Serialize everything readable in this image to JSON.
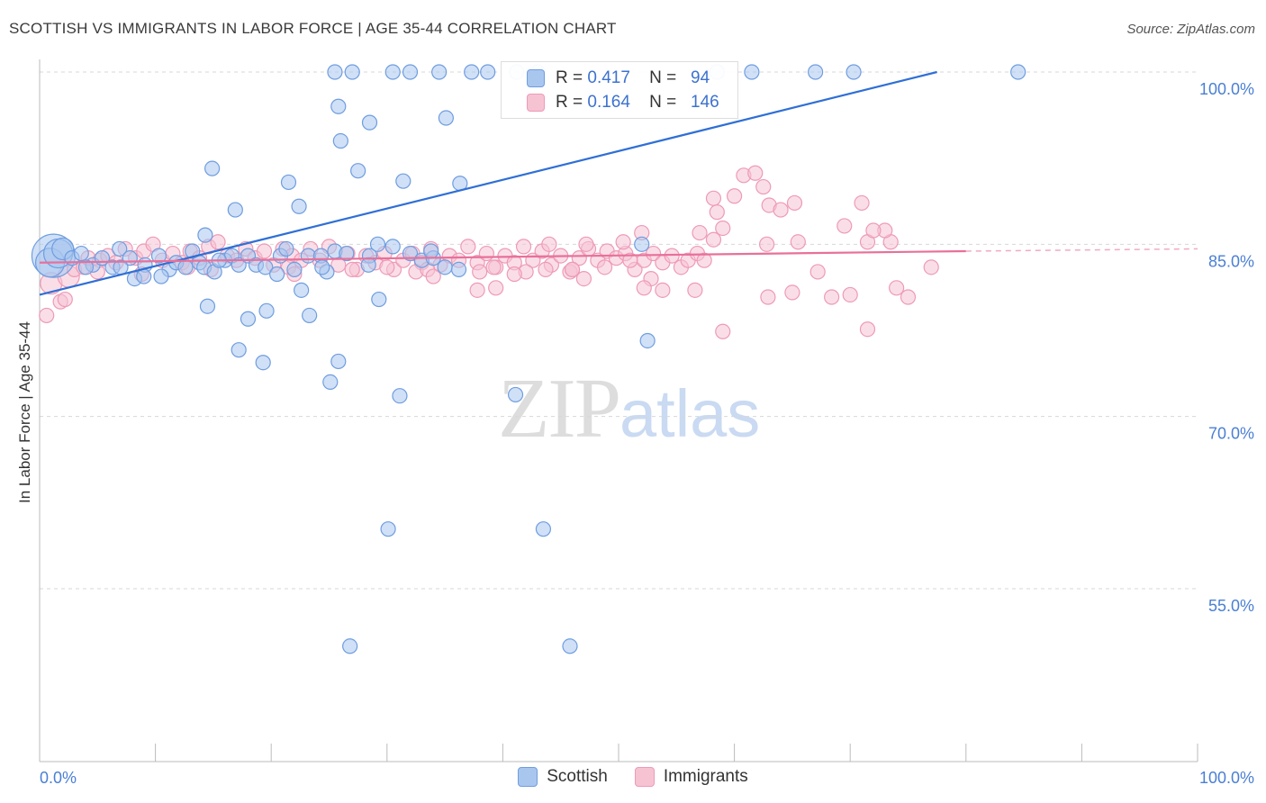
{
  "title": "SCOTTISH VS IMMIGRANTS IN LABOR FORCE | AGE 35-44 CORRELATION CHART",
  "source": "Source: ZipAtlas.com",
  "watermark": {
    "zip": "ZIP",
    "atlas": "atlas"
  },
  "legend_top": {
    "rows": [
      {
        "r_label": "R =",
        "r_value": "0.417",
        "n_label": "N =",
        "n_value": "94"
      },
      {
        "r_label": "R =",
        "r_value": "0.164",
        "n_label": "N =",
        "n_value": "146"
      }
    ]
  },
  "legend_bottom": [
    {
      "label": "Scottish"
    },
    {
      "label": "Immigrants"
    }
  ],
  "colors": {
    "blue_fill": "#a9c6ef",
    "blue_stroke": "#6f9de0",
    "blue_line": "#2f6fd6",
    "pink_fill": "#f6c3d3",
    "pink_stroke": "#ee9ab6",
    "pink_line": "#e8709a",
    "tick_text": "#4a7fd4",
    "grid": "#d7d7d7"
  },
  "chart_data": {
    "type": "scatter",
    "title": "SCOTTISH VS IMMIGRANTS IN LABOR FORCE | AGE 35-44 CORRELATION CHART",
    "xlabel": "",
    "ylabel": "In Labor Force | Age 35-44",
    "xlim": [
      0,
      100
    ],
    "ylim": [
      40,
      102
    ],
    "y_ticks": [
      {
        "value": 100,
        "label": "100.0%"
      },
      {
        "value": 85,
        "label": "85.0%"
      },
      {
        "value": 70,
        "label": "70.0%"
      },
      {
        "value": 55,
        "label": "55.0%"
      }
    ],
    "x_tick_labels": [
      {
        "value": 0,
        "label": "0.0%"
      },
      {
        "value": 100,
        "label": "100.0%"
      }
    ],
    "x_minor_ticks": [
      0,
      10,
      20,
      30,
      40,
      50,
      60,
      70,
      80,
      90,
      100
    ],
    "grid": true,
    "series": [
      {
        "name": "Scottish",
        "color": "#a9c6ef",
        "trend": {
          "x": [
            0,
            77.5
          ],
          "y": [
            80.6,
            100
          ]
        },
        "points": [
          [
            1.2,
            84.0,
            3
          ],
          [
            0.9,
            83.4,
            2
          ],
          [
            1.6,
            84.2,
            2
          ],
          [
            2.0,
            84.6,
            1.5
          ],
          [
            2.8,
            83.8,
            1
          ],
          [
            3.6,
            84.2,
            1
          ],
          [
            4.6,
            83.2,
            1
          ],
          [
            5.4,
            83.8,
            1
          ],
          [
            6.3,
            83.0,
            1
          ],
          [
            6.9,
            84.6,
            1
          ],
          [
            7.8,
            83.8,
            1
          ],
          [
            9.1,
            83.2,
            1
          ],
          [
            10.3,
            84.0,
            1
          ],
          [
            11.2,
            82.8,
            1
          ],
          [
            11.8,
            83.4,
            1
          ],
          [
            12.6,
            83.0,
            1
          ],
          [
            13.2,
            84.4,
            1
          ],
          [
            13.8,
            83.4,
            1
          ],
          [
            14.2,
            83.0,
            1
          ],
          [
            15.1,
            82.6,
            1
          ],
          [
            16.0,
            83.6,
            1
          ],
          [
            16.6,
            84.0,
            1
          ],
          [
            17.2,
            83.2,
            1
          ],
          [
            18.0,
            84.0,
            1
          ],
          [
            18.7,
            83.2,
            1
          ],
          [
            19.5,
            83.0,
            1
          ],
          [
            20.8,
            84.0,
            1
          ],
          [
            21.3,
            84.6,
            1
          ],
          [
            22.0,
            82.8,
            1
          ],
          [
            23.2,
            84.0,
            1
          ],
          [
            24.3,
            84.0,
            1
          ],
          [
            24.8,
            82.6,
            1
          ],
          [
            25.5,
            84.4,
            1
          ],
          [
            28.5,
            84.0,
            1
          ],
          [
            29.2,
            85.0,
            1
          ],
          [
            30.5,
            84.8,
            1
          ],
          [
            32.0,
            84.2,
            1
          ],
          [
            33.0,
            83.6,
            1
          ],
          [
            34.0,
            83.8,
            1
          ],
          [
            35.0,
            83.0,
            1
          ],
          [
            36.2,
            82.8,
            1
          ],
          [
            8.2,
            82.0,
            1
          ],
          [
            9.0,
            82.2,
            1
          ],
          [
            14.3,
            85.8,
            1
          ],
          [
            52.0,
            85.0,
            1
          ],
          [
            7.0,
            83.0,
            1
          ],
          [
            24.4,
            83.0,
            1
          ],
          [
            26.5,
            84.2,
            1
          ],
          [
            20.5,
            82.4,
            1
          ],
          [
            4.0,
            83.0,
            1
          ],
          [
            28.4,
            83.2,
            1
          ],
          [
            33.8,
            84.4,
            1
          ],
          [
            10.5,
            82.2,
            1
          ],
          [
            15.5,
            83.6,
            1
          ],
          [
            22.6,
            81.0,
            1
          ],
          [
            14.5,
            79.6,
            1
          ],
          [
            18.0,
            78.5,
            1
          ],
          [
            19.6,
            79.2,
            1
          ],
          [
            23.3,
            78.8,
            1
          ],
          [
            29.3,
            80.2,
            1
          ],
          [
            17.2,
            75.8,
            1
          ],
          [
            19.3,
            74.7,
            1
          ],
          [
            25.1,
            73.0,
            1
          ],
          [
            25.8,
            74.8,
            1
          ],
          [
            31.1,
            71.8,
            1
          ],
          [
            41.1,
            71.9,
            1
          ],
          [
            43.5,
            60.2,
            1
          ],
          [
            30.1,
            60.2,
            1
          ],
          [
            26.8,
            50.0,
            1
          ],
          [
            45.8,
            50.0,
            1
          ],
          [
            52.5,
            76.6,
            1
          ],
          [
            14.9,
            91.6,
            1
          ],
          [
            16.9,
            88.0,
            1
          ],
          [
            21.5,
            90.4,
            1
          ],
          [
            22.4,
            88.3,
            1
          ],
          [
            25.8,
            97.0,
            1
          ],
          [
            26.0,
            94.0,
            1
          ],
          [
            27.5,
            91.4,
            1
          ],
          [
            28.5,
            95.6,
            1
          ],
          [
            31.4,
            90.5,
            1
          ],
          [
            35.1,
            96.0,
            1
          ],
          [
            36.3,
            90.3,
            1
          ],
          [
            25.5,
            100,
            1
          ],
          [
            27.0,
            100,
            1
          ],
          [
            30.5,
            100,
            1
          ],
          [
            32.0,
            100,
            1
          ],
          [
            34.5,
            100,
            1
          ],
          [
            37.3,
            100,
            1
          ],
          [
            38.7,
            100,
            1
          ],
          [
            41.2,
            100,
            1
          ],
          [
            43.0,
            100,
            1
          ],
          [
            58.5,
            100,
            1
          ],
          [
            61.5,
            100,
            1
          ],
          [
            67.0,
            100,
            1
          ],
          [
            70.3,
            100,
            1
          ],
          [
            84.5,
            100,
            1
          ]
        ]
      },
      {
        "name": "Immigrants",
        "color": "#f6c3d3",
        "trend": {
          "x": [
            0,
            80
          ],
          "y": [
            83.4,
            84.4
          ]
        },
        "trend_dashed": {
          "x": [
            80,
            100
          ],
          "y": [
            84.4,
            84.6
          ]
        },
        "points": [
          [
            0.6,
            78.8,
            1
          ],
          [
            1.0,
            81.6,
            1.5
          ],
          [
            1.8,
            80.0,
            1
          ],
          [
            2.5,
            82.2,
            1.5
          ],
          [
            3.0,
            82.8,
            1
          ],
          [
            3.8,
            83.0,
            1
          ],
          [
            4.2,
            83.8,
            1
          ],
          [
            5.2,
            83.6,
            1
          ],
          [
            5.9,
            84.0,
            1
          ],
          [
            6.6,
            83.4,
            1
          ],
          [
            7.4,
            84.6,
            1
          ],
          [
            8.3,
            83.8,
            1
          ],
          [
            9.0,
            84.4,
            1
          ],
          [
            9.8,
            85.0,
            1
          ],
          [
            10.6,
            83.6,
            1
          ],
          [
            11.5,
            84.2,
            1
          ],
          [
            12.3,
            83.4,
            1
          ],
          [
            13.0,
            84.4,
            1
          ],
          [
            13.8,
            83.8,
            1
          ],
          [
            14.6,
            84.8,
            1
          ],
          [
            15.4,
            85.2,
            1
          ],
          [
            16.2,
            84.0,
            1
          ],
          [
            17.0,
            83.6,
            1
          ],
          [
            17.8,
            84.6,
            1
          ],
          [
            18.6,
            83.8,
            1
          ],
          [
            19.4,
            84.4,
            1
          ],
          [
            20.2,
            83.2,
            1
          ],
          [
            21.0,
            84.6,
            1
          ],
          [
            21.8,
            84.0,
            1
          ],
          [
            22.6,
            83.6,
            1
          ],
          [
            23.4,
            84.6,
            1
          ],
          [
            24.2,
            83.6,
            1
          ],
          [
            25.0,
            84.8,
            1
          ],
          [
            25.8,
            83.2,
            1
          ],
          [
            26.6,
            84.2,
            1
          ],
          [
            27.4,
            82.8,
            1
          ],
          [
            28.2,
            84.0,
            1
          ],
          [
            29.0,
            83.4,
            1
          ],
          [
            29.8,
            84.2,
            1
          ],
          [
            30.6,
            82.8,
            1
          ],
          [
            31.4,
            83.6,
            1
          ],
          [
            32.2,
            84.2,
            1
          ],
          [
            33.0,
            83.4,
            1
          ],
          [
            33.8,
            84.6,
            1
          ],
          [
            34.6,
            83.2,
            1
          ],
          [
            35.4,
            84.0,
            1
          ],
          [
            36.2,
            83.6,
            1
          ],
          [
            37.0,
            84.8,
            1
          ],
          [
            37.8,
            83.4,
            1
          ],
          [
            38.6,
            84.2,
            1
          ],
          [
            39.4,
            83.0,
            1
          ],
          [
            40.2,
            84.0,
            1
          ],
          [
            41.0,
            83.4,
            1
          ],
          [
            41.8,
            84.8,
            1
          ],
          [
            42.6,
            83.6,
            1
          ],
          [
            43.4,
            84.4,
            1
          ],
          [
            44.2,
            83.2,
            1
          ],
          [
            45.0,
            84.0,
            1
          ],
          [
            45.8,
            82.6,
            1
          ],
          [
            46.6,
            83.8,
            1
          ],
          [
            47.4,
            84.6,
            1
          ],
          [
            48.2,
            83.6,
            1
          ],
          [
            49.0,
            84.4,
            1
          ],
          [
            49.8,
            83.8,
            1
          ],
          [
            50.6,
            84.2,
            1
          ],
          [
            51.4,
            82.8,
            1
          ],
          [
            52.2,
            83.6,
            1
          ],
          [
            53.0,
            84.2,
            1
          ],
          [
            53.8,
            83.4,
            1
          ],
          [
            54.6,
            84.0,
            1
          ],
          [
            55.4,
            83.0,
            1
          ],
          [
            56.0,
            83.6,
            1
          ],
          [
            56.8,
            84.2,
            1
          ],
          [
            57.4,
            83.6,
            1
          ],
          [
            5.0,
            82.6,
            1
          ],
          [
            12.8,
            83.0,
            1
          ],
          [
            21.5,
            83.0,
            1
          ],
          [
            27.0,
            82.8,
            1
          ],
          [
            32.5,
            82.6,
            1
          ],
          [
            38.0,
            82.6,
            1
          ],
          [
            43.7,
            82.8,
            1
          ],
          [
            48.8,
            83.0,
            1
          ],
          [
            2.2,
            80.2,
            1
          ],
          [
            8.8,
            82.4,
            1
          ],
          [
            14.8,
            82.8,
            1
          ],
          [
            22.0,
            82.4,
            1
          ],
          [
            30.0,
            83.0,
            1
          ],
          [
            33.5,
            82.8,
            1
          ],
          [
            34.0,
            82.2,
            1
          ],
          [
            39.2,
            83.0,
            1
          ],
          [
            42.0,
            82.6,
            1
          ],
          [
            46.0,
            82.8,
            1
          ],
          [
            51.0,
            83.6,
            1
          ],
          [
            44.0,
            85.0,
            1
          ],
          [
            47.2,
            85.0,
            1
          ],
          [
            50.4,
            85.2,
            1
          ],
          [
            57.0,
            86.0,
            1
          ],
          [
            58.2,
            85.4,
            1
          ],
          [
            62.8,
            85.0,
            1
          ],
          [
            65.5,
            85.2,
            1
          ],
          [
            67.2,
            82.6,
            1
          ],
          [
            71.5,
            85.2,
            1
          ],
          [
            73.5,
            85.2,
            1
          ],
          [
            73.0,
            86.2,
            1
          ],
          [
            72.0,
            86.2,
            1
          ],
          [
            52.0,
            86.0,
            1
          ],
          [
            59.0,
            86.4,
            1
          ],
          [
            58.5,
            87.8,
            1
          ],
          [
            58.2,
            89.0,
            1
          ],
          [
            60.0,
            89.2,
            1
          ],
          [
            60.8,
            91.0,
            1
          ],
          [
            61.8,
            91.2,
            1
          ],
          [
            62.5,
            90.0,
            1
          ],
          [
            63.0,
            88.4,
            1
          ],
          [
            65.2,
            88.6,
            1
          ],
          [
            69.5,
            86.6,
            1
          ],
          [
            71.0,
            88.6,
            1
          ],
          [
            64.0,
            88.0,
            1
          ],
          [
            46.0,
            82.8,
            1
          ],
          [
            52.8,
            82.0,
            1
          ],
          [
            37.8,
            81.0,
            1
          ],
          [
            39.4,
            81.2,
            1
          ],
          [
            52.2,
            81.2,
            1
          ],
          [
            53.8,
            81.0,
            1
          ],
          [
            56.6,
            81.0,
            1
          ],
          [
            62.9,
            80.4,
            1
          ],
          [
            65.0,
            80.8,
            1
          ],
          [
            68.4,
            80.4,
            1
          ],
          [
            70.0,
            80.6,
            1
          ],
          [
            75.0,
            80.4,
            1
          ],
          [
            74.0,
            81.2,
            1
          ],
          [
            59.0,
            77.4,
            1
          ],
          [
            71.5,
            77.6,
            1
          ],
          [
            47.0,
            82.0,
            1
          ],
          [
            41.0,
            82.4,
            1
          ],
          [
            77.0,
            83.0,
            1
          ]
        ]
      }
    ]
  }
}
